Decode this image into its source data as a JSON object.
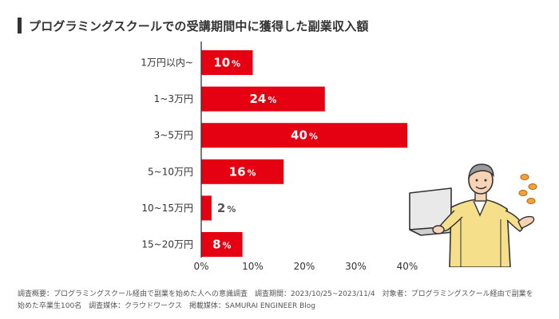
{
  "title": "プログラミングスクールでの受講期間中に獲得した副業収入額",
  "chart_data": {
    "type": "bar",
    "orientation": "horizontal",
    "categories": [
      "1万円以内~",
      "1~3万円",
      "3~5万円",
      "5~10万円",
      "10~15万円",
      "15~20万円"
    ],
    "values": [
      10,
      24,
      40,
      16,
      2,
      8
    ],
    "value_suffix": "%",
    "xlim": [
      0,
      40
    ],
    "x_ticks": [
      0,
      10,
      20,
      30,
      40
    ],
    "x_tick_labels": [
      "0%",
      "10%",
      "20%",
      "30%",
      "40%"
    ],
    "bar_color": "#e50012",
    "grid": false,
    "legend": "none"
  },
  "footnote": {
    "line1": "調査概要：プログラミングスクール経由で副業を始めた人への意識調査　調査期間：2023/10/25~2023/11/4　対象者：プログラミングスクール経由で副業を",
    "line2": "始めた卒業生100名　調査媒体：クラウドワークス　掲載媒体：SAMURAI ENGINEER Blog"
  },
  "illustration": {
    "icon": "person-with-laptop-illustration"
  }
}
